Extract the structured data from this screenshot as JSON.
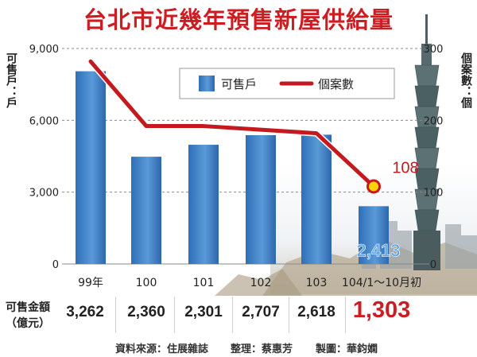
{
  "title": "台北市近幾年預售新屋供給量",
  "axes": {
    "left_label": "可售戶：戶",
    "right_label": "個案數：個"
  },
  "legend": {
    "bar_label": "可售戶",
    "line_label": "個案數"
  },
  "amounts": {
    "label": "可售金額（億元）",
    "values": [
      "3,262",
      "2,360",
      "2,301",
      "2,707",
      "2,618",
      "1,303"
    ]
  },
  "credits": {
    "source": "資料來源：住展雜誌",
    "editor": "整理：蔡惠芳",
    "designer": "製圖：華鈞嫻"
  },
  "colors": {
    "bar": "#3f86cc",
    "line": "#c41a1f",
    "title": "#cc1e22",
    "grid": "#8a8a8a",
    "marker_fill": "#ffd400"
  },
  "chart_data": {
    "type": "bar",
    "categories": [
      "99年",
      "100",
      "101",
      "102",
      "103",
      "104/1～10月初"
    ],
    "series": [
      {
        "name": "可售戶",
        "type": "bar",
        "axis": "left",
        "values": [
          8050,
          4480,
          4980,
          5380,
          5400,
          2413
        ]
      },
      {
        "name": "個案數",
        "type": "line",
        "axis": "right",
        "values": [
          282,
          192,
          192,
          187,
          182,
          108
        ]
      }
    ],
    "ylim_left": [
      0,
      9000
    ],
    "ylim_right": [
      0,
      300
    ],
    "yticks_left": [
      "0",
      "3,000",
      "6,000",
      "9,000"
    ],
    "yticks_right": [
      "0",
      "100",
      "200",
      "300"
    ],
    "data_labels": {
      "bar_last": "2,413",
      "line_last": "108"
    },
    "grid": true,
    "legend_position": "top-center"
  }
}
